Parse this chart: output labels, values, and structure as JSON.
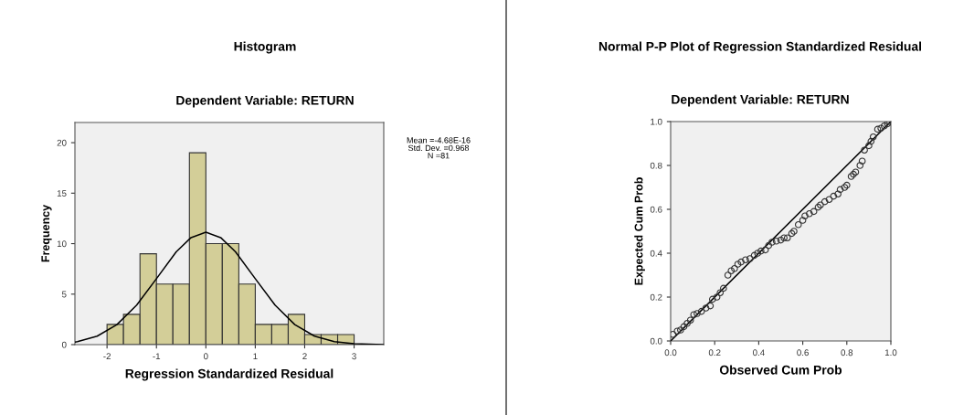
{
  "chart_data": [
    {
      "type": "histogram",
      "title": "Histogram",
      "subtitle": "Dependent Variable: RETURN",
      "xlabel": "Regression Standardized Residual",
      "ylabel": "Frequency",
      "bins": [
        -2,
        -1.667,
        -1.333,
        -1,
        -0.667,
        -0.333,
        0,
        0.333,
        0.667,
        1,
        1.333,
        1.667,
        2,
        2.333,
        2.667,
        3
      ],
      "values": [
        2,
        3,
        9,
        6,
        6,
        19,
        10,
        10,
        6,
        2,
        2,
        3,
        1,
        1,
        1
      ],
      "color": "#d3ce98",
      "series": [
        {
          "type": "line",
          "color": "#000000",
          "x": [
            -2.65,
            -2.6,
            -2.2,
            -1.8,
            -1.4,
            -1.0,
            -0.6,
            -0.3,
            0,
            0.3,
            0.6,
            1.0,
            1.4,
            1.8,
            2.2,
            2.6,
            3.0,
            3.6
          ],
          "values": [
            0.25,
            0.3,
            0.84,
            1.98,
            3.91,
            6.53,
            9.19,
            10.6,
            11.13,
            10.6,
            9.19,
            6.53,
            3.91,
            1.98,
            0.84,
            0.3,
            0.09,
            0.01
          ]
        }
      ],
      "xlim": [
        -2.65,
        3.6
      ],
      "ylim": [
        0,
        22
      ],
      "xticks": [
        -2,
        -1,
        0,
        1,
        2,
        3
      ],
      "yticks": [
        0,
        5,
        10,
        15,
        20
      ],
      "grid": false,
      "annotations": [
        "Mean =-4.68E-16\nStd. Dev. =0.968\nN =81"
      ]
    },
    {
      "type": "scatter",
      "title": "Normal P-P Plot of Regression Standardized Residual",
      "subtitle": "Dependent Variable: RETURN",
      "xlabel": "Observed Cum Prob",
      "ylabel": "Expected Cum Prob",
      "series": [
        {
          "type": "scatter",
          "color": "#333333",
          "marker": "circle",
          "x": [
            0.01,
            0.03,
            0.045,
            0.06,
            0.075,
            0.09,
            0.105,
            0.12,
            0.14,
            0.16,
            0.18,
            0.19,
            0.21,
            0.225,
            0.24,
            0.26,
            0.275,
            0.29,
            0.305,
            0.32,
            0.34,
            0.36,
            0.38,
            0.395,
            0.41,
            0.43,
            0.445,
            0.46,
            0.48,
            0.5,
            0.515,
            0.53,
            0.55,
            0.56,
            0.58,
            0.6,
            0.61,
            0.63,
            0.65,
            0.67,
            0.68,
            0.7,
            0.72,
            0.74,
            0.76,
            0.77,
            0.79,
            0.8,
            0.82,
            0.83,
            0.84,
            0.86,
            0.87,
            0.88,
            0.9,
            0.91,
            0.92,
            0.94,
            0.955,
            0.97,
            0.985,
            0.995
          ],
          "values": [
            0.03,
            0.045,
            0.05,
            0.065,
            0.08,
            0.095,
            0.12,
            0.125,
            0.135,
            0.15,
            0.16,
            0.19,
            0.2,
            0.22,
            0.24,
            0.3,
            0.32,
            0.33,
            0.35,
            0.36,
            0.37,
            0.375,
            0.39,
            0.4,
            0.41,
            0.415,
            0.435,
            0.45,
            0.455,
            0.46,
            0.47,
            0.47,
            0.49,
            0.5,
            0.53,
            0.55,
            0.57,
            0.58,
            0.59,
            0.61,
            0.62,
            0.635,
            0.645,
            0.66,
            0.67,
            0.69,
            0.7,
            0.71,
            0.75,
            0.76,
            0.77,
            0.8,
            0.82,
            0.87,
            0.89,
            0.91,
            0.93,
            0.965,
            0.97,
            0.98,
            0.99,
            1.0
          ]
        },
        {
          "type": "line",
          "color": "#000000",
          "x": [
            0,
            1
          ],
          "values": [
            0,
            1
          ]
        }
      ],
      "xlim": [
        0,
        1
      ],
      "ylim": [
        0,
        1
      ],
      "xticks": [
        {
          "value": 0,
          "label": "0.0"
        },
        0.2,
        0.4,
        0.6,
        0.8,
        {
          "value": 1,
          "label": "1.0"
        }
      ],
      "yticks": [
        {
          "value": 0,
          "label": "0.0"
        },
        0.2,
        0.4,
        0.6,
        0.8,
        {
          "value": 1,
          "label": "1.0"
        }
      ],
      "grid": false
    }
  ]
}
